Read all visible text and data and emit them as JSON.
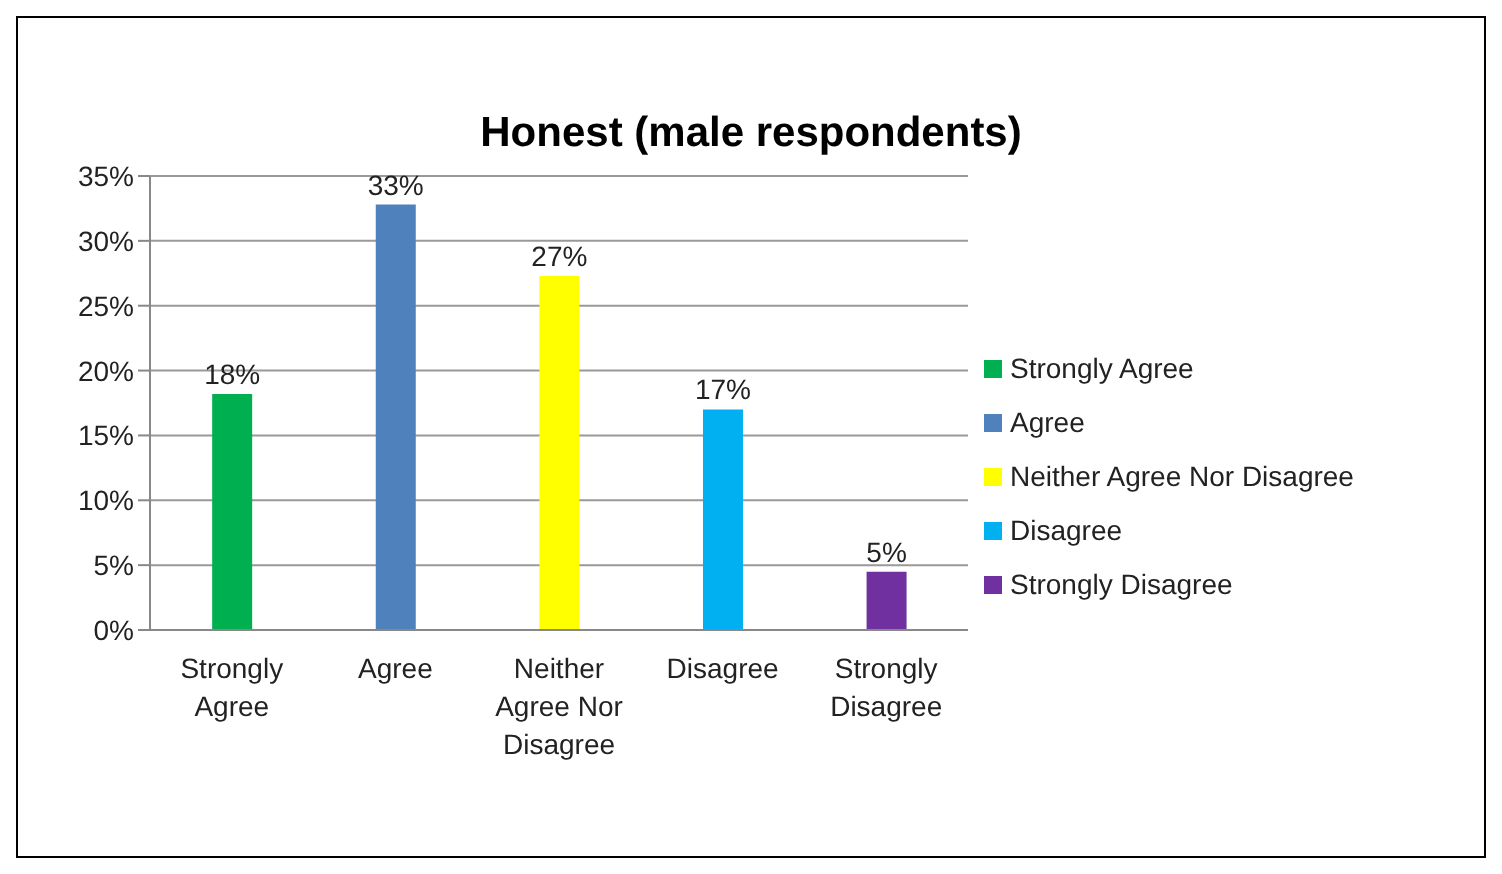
{
  "chart_data": {
    "type": "bar",
    "title": "Honest (male respondents)",
    "categories": [
      "Strongly Agree",
      "Agree",
      "Neither Agree Nor Disagree",
      "Disagree",
      "Strongly Disagree"
    ],
    "series": [
      {
        "name": "Strongly Agree",
        "color": "#00b050",
        "values": [
          18.2,
          null,
          null,
          null,
          null
        ],
        "value_labels": [
          "18%",
          null,
          null,
          null,
          null
        ]
      },
      {
        "name": "Agree",
        "color": "#4f81bd",
        "values": [
          null,
          32.8,
          null,
          null,
          null
        ],
        "value_labels": [
          null,
          "33%",
          null,
          null,
          null
        ]
      },
      {
        "name": "Neither Agree Nor Disagree",
        "color": "#ffff00",
        "values": [
          null,
          null,
          27.3,
          null,
          null
        ],
        "value_labels": [
          null,
          null,
          "27%",
          null,
          null
        ]
      },
      {
        "name": "Disagree",
        "color": "#00b0f0",
        "values": [
          null,
          null,
          null,
          17,
          null
        ],
        "value_labels": [
          null,
          null,
          null,
          "17%",
          null
        ]
      },
      {
        "name": "Strongly Disagree",
        "color": "#7030a0",
        "values": [
          null,
          null,
          null,
          null,
          4.5
        ],
        "value_labels": [
          null,
          null,
          null,
          null,
          "5%"
        ]
      }
    ],
    "stacked": true,
    "ylim": [
      0,
      35
    ],
    "yticks": [
      {
        "value": 0,
        "label": "0%"
      },
      {
        "value": 5,
        "label": "5%"
      },
      {
        "value": 10,
        "label": "10%"
      },
      {
        "value": 15,
        "label": "15%"
      },
      {
        "value": 20,
        "label": "20%"
      },
      {
        "value": 25,
        "label": "25%"
      },
      {
        "value": 30,
        "label": "30%"
      },
      {
        "value": 35,
        "label": "35%"
      }
    ],
    "grid": "y",
    "legend": "right"
  }
}
